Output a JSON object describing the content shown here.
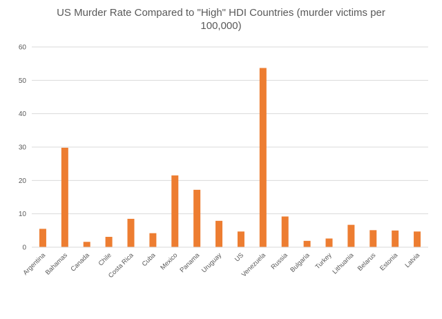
{
  "chart_data": {
    "type": "bar",
    "title": "US Murder Rate Compared to \"High\" HDI Countries (murder victims per 100,000)",
    "title_lines": [
      "US Murder Rate Compared to \"High\" HDI Countries (murder victims per",
      "100,000)"
    ],
    "xlabel": "",
    "ylabel": "",
    "ylim": [
      0,
      60
    ],
    "yticks": [
      0,
      10,
      20,
      30,
      40,
      50,
      60
    ],
    "grid": true,
    "legend": "none",
    "bar_color": "#ED7D31",
    "grid_color": "#D9D9D9",
    "categories": [
      "Argentina",
      "Bahamas",
      "Canada",
      "Chile",
      "Costa Rica",
      "Cuba",
      "Mexico",
      "Panama",
      "Uruguay",
      "US",
      "Venezuela",
      "Russia",
      "Bulgaria",
      "Turkey",
      "Lithuania",
      "Belarus",
      "Estonia",
      "Latvia"
    ],
    "values": [
      5.5,
      29.8,
      1.6,
      3.1,
      8.5,
      4.2,
      21.5,
      17.2,
      7.9,
      4.7,
      53.7,
      9.2,
      1.9,
      2.6,
      6.7,
      5.1,
      5.0,
      4.7
    ]
  }
}
